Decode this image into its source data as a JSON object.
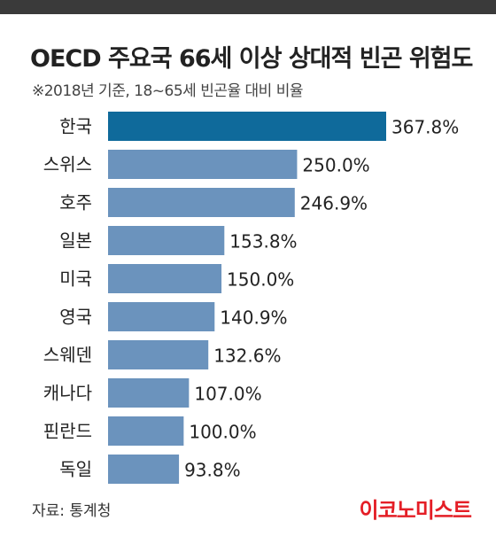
{
  "header": {
    "title": "OECD 주요국 66세 이상 상대적 빈곤 위험도",
    "subtitle": "※2018년 기준, 18~65세 빈곤율 대비 비율"
  },
  "footer": {
    "source": "자료: 통계청",
    "brand": "이코노미스트"
  },
  "colors": {
    "highlight": "#0f6a9b",
    "bar": "#6b93bd",
    "brand": "#e41e26"
  },
  "chart_data": {
    "type": "bar",
    "orientation": "horizontal",
    "title": "OECD 주요국 66세 이상 상대적 빈곤 위험도",
    "subtitle": "※2018년 기준, 18~65세 빈곤율 대비 비율",
    "categories": [
      "한국",
      "스위스",
      "호주",
      "일본",
      "미국",
      "영국",
      "스웨덴",
      "캐나다",
      "핀란드",
      "독일"
    ],
    "values": [
      367.8,
      250.0,
      246.9,
      153.8,
      150.0,
      140.9,
      132.6,
      107.0,
      100.0,
      93.8
    ],
    "value_labels": [
      "367.8%",
      "250.0%",
      "246.9%",
      "153.8%",
      "150.0%",
      "140.9%",
      "132.6%",
      "107.0%",
      "100.0%",
      "93.8%"
    ],
    "highlight_category": "한국",
    "xlim": [
      0,
      367.8
    ],
    "grid": false,
    "legend": "none"
  }
}
